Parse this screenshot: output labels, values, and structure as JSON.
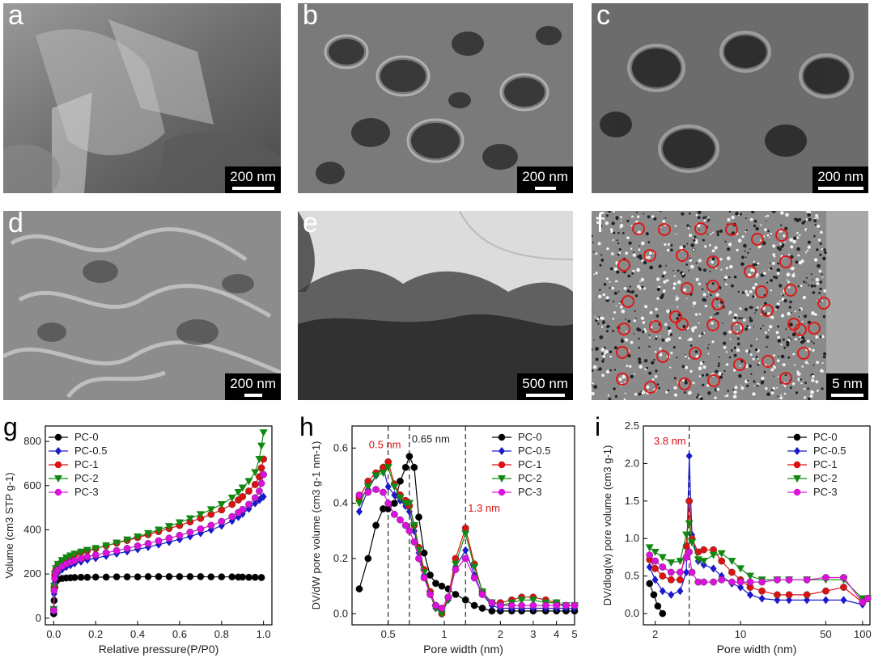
{
  "panels": {
    "a": {
      "letter": "a",
      "scale": "200 nm"
    },
    "b": {
      "letter": "b",
      "scale": "200 nm"
    },
    "c": {
      "letter": "c",
      "scale": "200 nm"
    },
    "d": {
      "letter": "d",
      "scale": "200 nm"
    },
    "e": {
      "letter": "e",
      "scale": "500 nm"
    },
    "f": {
      "letter": "f",
      "scale": "5 nm"
    }
  },
  "chart_data": [
    {
      "panel": "g",
      "type": "scatter",
      "xlabel": "Relative pressure(P/P0)",
      "ylabel": "Volume (cm3 STP g-1)",
      "xlim": [
        -0.04,
        1.04
      ],
      "ylim": [
        -30,
        870
      ],
      "xticks": [
        "0.0",
        "0.2",
        "0.4",
        "0.6",
        "0.8",
        "1.0"
      ],
      "xtick_values": [
        0,
        0.2,
        0.4,
        0.6,
        0.8,
        1.0
      ],
      "yticks": [
        "0",
        "200",
        "400",
        "600",
        "800"
      ],
      "ytick_values": [
        0,
        200,
        400,
        600,
        800
      ],
      "legend_position": "top-left",
      "series": [
        {
          "name": "PC-0",
          "color": "#000000",
          "marker": "circle",
          "x": [
            0.0,
            0.002,
            0.005,
            0.01,
            0.02,
            0.04,
            0.06,
            0.08,
            0.1,
            0.13,
            0.16,
            0.2,
            0.25,
            0.3,
            0.35,
            0.4,
            0.45,
            0.5,
            0.55,
            0.6,
            0.65,
            0.7,
            0.75,
            0.8,
            0.85,
            0.88,
            0.9,
            0.93,
            0.96,
            0.99
          ],
          "y": [
            20,
            80,
            140,
            165,
            175,
            180,
            182,
            183,
            184,
            185,
            185,
            186,
            186,
            187,
            187,
            187,
            188,
            188,
            188,
            188,
            188,
            188,
            187,
            187,
            187,
            186,
            186,
            185,
            185,
            184
          ]
        },
        {
          "name": "PC-0.5",
          "color": "#1a1acc",
          "marker": "diamond",
          "x": [
            0.0,
            0.002,
            0.005,
            0.01,
            0.02,
            0.04,
            0.06,
            0.08,
            0.1,
            0.13,
            0.16,
            0.2,
            0.25,
            0.3,
            0.35,
            0.4,
            0.45,
            0.5,
            0.55,
            0.6,
            0.65,
            0.7,
            0.75,
            0.8,
            0.85,
            0.88,
            0.9,
            0.93,
            0.96,
            0.98,
            0.99,
            1.0
          ],
          "y": [
            30,
            110,
            160,
            190,
            205,
            220,
            232,
            240,
            248,
            256,
            264,
            272,
            282,
            292,
            302,
            312,
            322,
            333,
            345,
            357,
            370,
            385,
            400,
            418,
            440,
            458,
            472,
            495,
            520,
            535,
            545,
            550
          ]
        },
        {
          "name": "PC-1",
          "color": "#dd1111",
          "marker": "circle",
          "x": [
            0.0,
            0.002,
            0.005,
            0.01,
            0.02,
            0.04,
            0.06,
            0.08,
            0.1,
            0.13,
            0.16,
            0.2,
            0.25,
            0.3,
            0.35,
            0.4,
            0.45,
            0.5,
            0.55,
            0.6,
            0.65,
            0.7,
            0.75,
            0.8,
            0.85,
            0.88,
            0.9,
            0.93,
            0.96,
            0.98,
            0.99,
            1.0
          ],
          "y": [
            40,
            140,
            195,
            220,
            240,
            258,
            270,
            280,
            288,
            298,
            306,
            315,
            328,
            340,
            352,
            365,
            378,
            392,
            406,
            420,
            436,
            452,
            470,
            490,
            515,
            535,
            550,
            575,
            605,
            640,
            680,
            720
          ]
        },
        {
          "name": "PC-2",
          "color": "#118811",
          "marker": "triangle-down",
          "x": [
            0.0,
            0.002,
            0.005,
            0.01,
            0.02,
            0.04,
            0.06,
            0.08,
            0.1,
            0.13,
            0.16,
            0.2,
            0.25,
            0.3,
            0.35,
            0.4,
            0.45,
            0.5,
            0.55,
            0.6,
            0.65,
            0.7,
            0.75,
            0.8,
            0.85,
            0.88,
            0.9,
            0.93,
            0.96,
            0.98,
            0.99,
            1.0
          ],
          "y": [
            40,
            145,
            200,
            225,
            245,
            262,
            274,
            283,
            291,
            300,
            308,
            316,
            328,
            341,
            355,
            369,
            384,
            400,
            416,
            433,
            451,
            470,
            492,
            515,
            545,
            570,
            590,
            620,
            660,
            720,
            780,
            840
          ]
        },
        {
          "name": "PC-3",
          "color": "#dd11dd",
          "marker": "circle",
          "x": [
            0.0,
            0.002,
            0.005,
            0.01,
            0.02,
            0.04,
            0.06,
            0.08,
            0.1,
            0.13,
            0.16,
            0.2,
            0.25,
            0.3,
            0.35,
            0.4,
            0.45,
            0.5,
            0.55,
            0.6,
            0.65,
            0.7,
            0.75,
            0.8,
            0.85,
            0.88,
            0.9,
            0.93,
            0.96,
            0.98,
            0.99,
            1.0
          ],
          "y": [
            35,
            125,
            180,
            205,
            220,
            235,
            246,
            254,
            261,
            270,
            278,
            286,
            296,
            306,
            316,
            327,
            338,
            350,
            362,
            375,
            389,
            404,
            420,
            438,
            460,
            478,
            492,
            515,
            545,
            575,
            610,
            650
          ]
        }
      ]
    },
    {
      "panel": "h",
      "type": "line",
      "xscale": "log",
      "xlabel": "Pore width (nm)",
      "ylabel": "DV/dW pore volume (cm3 g-1 nm-1)",
      "xlim": [
        0.32,
        5.0
      ],
      "ylim": [
        -0.04,
        0.68
      ],
      "xticks": [
        "0.5",
        "1",
        "2",
        "3",
        "4",
        "5"
      ],
      "xtick_values": [
        0.5,
        1,
        2,
        3,
        4,
        5
      ],
      "yticks": [
        "0.0",
        "0.2",
        "0.4",
        "0.6"
      ],
      "ytick_values": [
        0.0,
        0.2,
        0.4,
        0.6
      ],
      "vlines": [
        0.5,
        0.65,
        1.3
      ],
      "annotations": [
        {
          "text": "0.5 nm",
          "x": 0.5,
          "y": 0.6,
          "color": "#dd1111"
        },
        {
          "text": "0.65 nm",
          "x": 0.65,
          "y": 0.62,
          "color": "#222222"
        },
        {
          "text": "1.3 nm",
          "x": 1.3,
          "y": 0.37,
          "color": "#dd1111"
        }
      ],
      "legend_position": "top-right",
      "series": [
        {
          "name": "PC-0",
          "color": "#000000",
          "marker": "circle",
          "x": [
            0.35,
            0.39,
            0.43,
            0.47,
            0.5,
            0.54,
            0.58,
            0.62,
            0.65,
            0.69,
            0.73,
            0.78,
            0.84,
            0.9,
            0.97,
            1.05,
            1.15,
            1.3,
            1.45,
            1.6,
            1.8,
            2.0,
            2.3,
            2.6,
            3.0,
            3.5,
            4.0,
            4.5,
            5.0
          ],
          "y": [
            0.09,
            0.2,
            0.32,
            0.38,
            0.38,
            0.4,
            0.48,
            0.53,
            0.57,
            0.53,
            0.35,
            0.22,
            0.14,
            0.11,
            0.1,
            0.09,
            0.07,
            0.05,
            0.03,
            0.02,
            0.01,
            0.01,
            0.01,
            0.01,
            0.01,
            0.01,
            0.01,
            0.01,
            0.01
          ]
        },
        {
          "name": "PC-0.5",
          "color": "#1a1acc",
          "marker": "diamond",
          "x": [
            0.35,
            0.39,
            0.43,
            0.47,
            0.5,
            0.54,
            0.58,
            0.62,
            0.65,
            0.69,
            0.73,
            0.78,
            0.84,
            0.9,
            0.97,
            1.05,
            1.15,
            1.3,
            1.45,
            1.6,
            1.8,
            2.0,
            2.3,
            2.6,
            3.0,
            3.5,
            4.0,
            4.5,
            5.0
          ],
          "y": [
            0.37,
            0.45,
            0.5,
            0.53,
            0.46,
            0.43,
            0.41,
            0.39,
            0.37,
            0.3,
            0.22,
            0.14,
            0.07,
            0.02,
            0.0,
            0.05,
            0.17,
            0.23,
            0.14,
            0.07,
            0.03,
            0.02,
            0.02,
            0.02,
            0.02,
            0.02,
            0.02,
            0.02,
            0.02
          ]
        },
        {
          "name": "PC-1",
          "color": "#dd1111",
          "marker": "circle",
          "x": [
            0.35,
            0.39,
            0.43,
            0.47,
            0.5,
            0.54,
            0.58,
            0.62,
            0.65,
            0.69,
            0.73,
            0.78,
            0.84,
            0.9,
            0.97,
            1.05,
            1.15,
            1.3,
            1.45,
            1.6,
            1.8,
            2.0,
            2.3,
            2.6,
            3.0,
            3.5,
            4.0,
            4.5,
            5.0
          ],
          "y": [
            0.42,
            0.48,
            0.51,
            0.53,
            0.55,
            0.47,
            0.43,
            0.41,
            0.39,
            0.32,
            0.24,
            0.16,
            0.08,
            0.03,
            0.0,
            0.06,
            0.2,
            0.31,
            0.18,
            0.08,
            0.04,
            0.04,
            0.05,
            0.06,
            0.06,
            0.05,
            0.04,
            0.03,
            0.03
          ]
        },
        {
          "name": "PC-2",
          "color": "#118811",
          "marker": "triangle-down",
          "x": [
            0.35,
            0.39,
            0.43,
            0.47,
            0.5,
            0.54,
            0.58,
            0.62,
            0.65,
            0.69,
            0.73,
            0.78,
            0.84,
            0.9,
            0.97,
            1.05,
            1.15,
            1.3,
            1.45,
            1.6,
            1.8,
            2.0,
            2.3,
            2.6,
            3.0,
            3.5,
            4.0,
            4.5,
            5.0
          ],
          "y": [
            0.4,
            0.46,
            0.5,
            0.51,
            0.53,
            0.46,
            0.42,
            0.4,
            0.4,
            0.32,
            0.23,
            0.15,
            0.07,
            0.02,
            0.0,
            0.05,
            0.18,
            0.29,
            0.17,
            0.08,
            0.04,
            0.03,
            0.04,
            0.05,
            0.05,
            0.04,
            0.04,
            0.03,
            0.03
          ]
        },
        {
          "name": "PC-3",
          "color": "#dd11dd",
          "marker": "circle",
          "x": [
            0.35,
            0.39,
            0.43,
            0.47,
            0.5,
            0.54,
            0.58,
            0.62,
            0.65,
            0.69,
            0.73,
            0.78,
            0.84,
            0.9,
            0.97,
            1.05,
            1.15,
            1.3,
            1.45,
            1.6,
            1.8,
            2.0,
            2.3,
            2.6,
            3.0,
            3.5,
            4.0,
            4.5,
            5.0
          ],
          "y": [
            0.43,
            0.44,
            0.45,
            0.44,
            0.4,
            0.36,
            0.34,
            0.32,
            0.3,
            0.26,
            0.2,
            0.13,
            0.07,
            0.03,
            0.02,
            0.06,
            0.16,
            0.2,
            0.13,
            0.07,
            0.04,
            0.03,
            0.03,
            0.03,
            0.03,
            0.03,
            0.03,
            0.03,
            0.03
          ]
        }
      ]
    },
    {
      "panel": "i",
      "type": "line",
      "xscale": "log",
      "xlabel": "Pore width (nm)",
      "ylabel": "DV/dlog(w) pore volume (cm3 g-1)",
      "xlim": [
        1.6,
        115
      ],
      "ylim": [
        -0.15,
        2.5
      ],
      "xticks": [
        "2",
        "10",
        "50",
        "100"
      ],
      "xtick_values": [
        2,
        10,
        50,
        100
      ],
      "yticks": [
        "0.0",
        "0.5",
        "1.0",
        "1.5",
        "2.0",
        "2.5"
      ],
      "ytick_values": [
        0.0,
        0.5,
        1.0,
        1.5,
        2.0,
        2.5
      ],
      "vlines": [
        3.8
      ],
      "annotations": [
        {
          "text": "3.8 nm",
          "x": 3.8,
          "y": 2.25,
          "color": "#dd1111"
        }
      ],
      "legend_position": "top-right",
      "series": [
        {
          "name": "PC-0",
          "color": "#000000",
          "marker": "circle",
          "x": [
            1.8,
            1.95,
            2.1,
            2.3
          ],
          "y": [
            0.4,
            0.25,
            0.1,
            0.0
          ]
        },
        {
          "name": "PC-0.5",
          "color": "#1a1acc",
          "marker": "diamond",
          "x": [
            1.8,
            2.0,
            2.3,
            2.7,
            3.2,
            3.6,
            3.8,
            4.0,
            4.5,
            5.0,
            6.0,
            7.0,
            8.5,
            10,
            12,
            15,
            20,
            25,
            35,
            50,
            70,
            100,
            110
          ],
          "y": [
            0.62,
            0.45,
            0.3,
            0.25,
            0.3,
            0.55,
            2.1,
            1.05,
            0.7,
            0.65,
            0.6,
            0.5,
            0.4,
            0.35,
            0.25,
            0.2,
            0.18,
            0.18,
            0.18,
            0.18,
            0.18,
            0.12,
            0.2
          ]
        },
        {
          "name": "PC-1",
          "color": "#dd1111",
          "marker": "circle",
          "x": [
            1.8,
            2.0,
            2.3,
            2.7,
            3.2,
            3.6,
            3.8,
            4.0,
            4.5,
            5.0,
            6.0,
            7.0,
            8.5,
            10,
            12,
            15,
            20,
            25,
            35,
            50,
            70,
            100,
            110
          ],
          "y": [
            0.72,
            0.6,
            0.5,
            0.45,
            0.45,
            0.9,
            1.5,
            1.0,
            0.82,
            0.85,
            0.85,
            0.7,
            0.55,
            0.45,
            0.35,
            0.3,
            0.25,
            0.25,
            0.25,
            0.3,
            0.35,
            0.15,
            0.2
          ]
        },
        {
          "name": "PC-2",
          "color": "#118811",
          "marker": "triangle-down",
          "x": [
            1.8,
            2.0,
            2.3,
            2.7,
            3.2,
            3.6,
            3.8,
            4.0,
            4.5,
            5.0,
            6.0,
            7.0,
            8.5,
            10,
            12,
            15,
            20,
            25,
            35,
            50,
            70,
            100,
            110
          ],
          "y": [
            0.88,
            0.82,
            0.75,
            0.68,
            0.7,
            1.05,
            1.2,
            0.95,
            0.72,
            0.7,
            0.78,
            0.8,
            0.7,
            0.6,
            0.5,
            0.45,
            0.45,
            0.45,
            0.45,
            0.45,
            0.45,
            0.2,
            0.2
          ]
        },
        {
          "name": "PC-3",
          "color": "#dd11dd",
          "marker": "circle",
          "x": [
            1.8,
            2.0,
            2.3,
            2.7,
            3.2,
            3.6,
            3.8,
            4.0,
            4.5,
            5.0,
            6.0,
            7.0,
            8.5,
            10,
            12,
            15,
            20,
            25,
            35,
            50,
            70,
            100,
            110
          ],
          "y": [
            0.78,
            0.7,
            0.62,
            0.55,
            0.55,
            0.75,
            0.82,
            0.55,
            0.42,
            0.42,
            0.42,
            0.45,
            0.42,
            0.42,
            0.42,
            0.42,
            0.45,
            0.45,
            0.45,
            0.48,
            0.48,
            0.15,
            0.2
          ]
        }
      ]
    }
  ]
}
